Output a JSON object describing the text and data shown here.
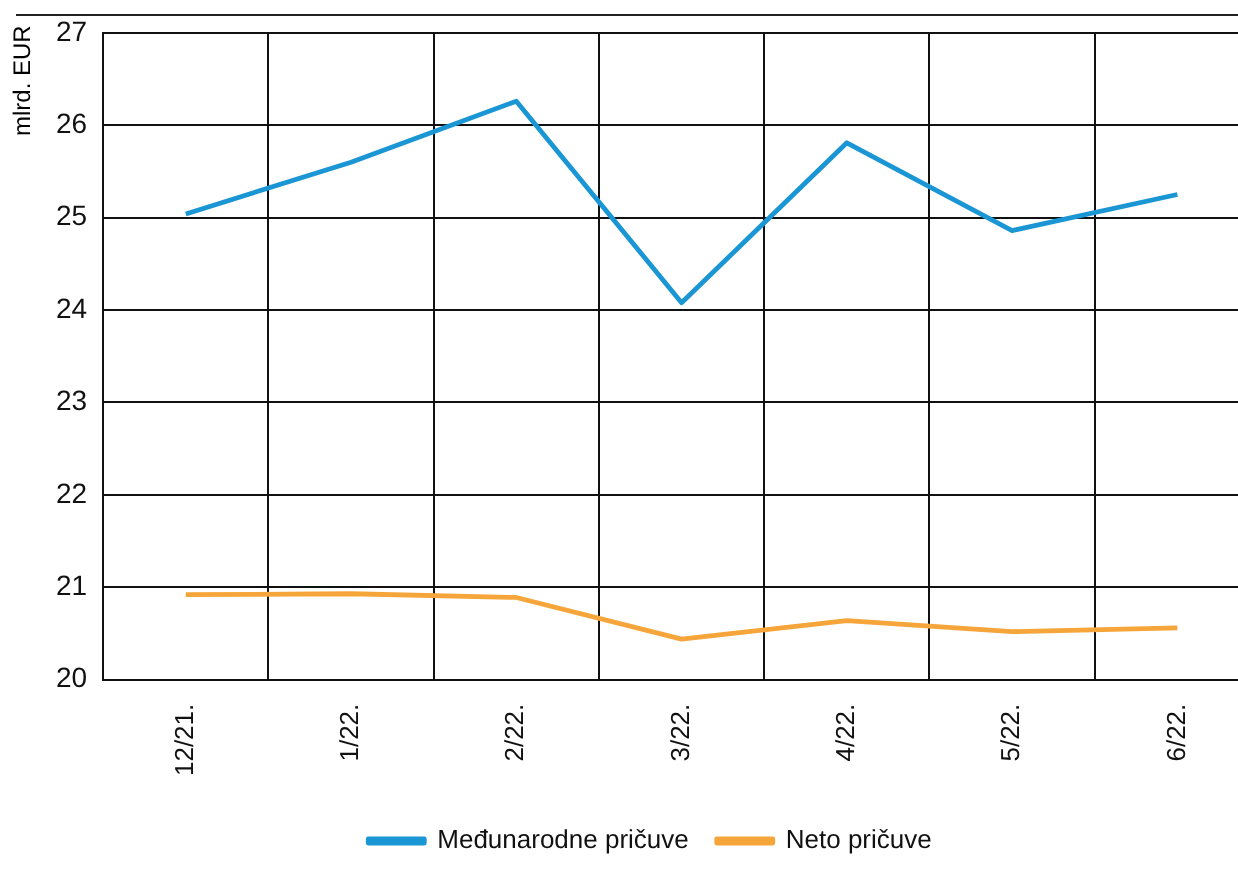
{
  "chart_data": {
    "type": "line",
    "ylabel": "mlrd. EUR",
    "categories": [
      "12/21.",
      "1/22.",
      "2/22.",
      "3/22.",
      "4/22.",
      "5/22.",
      "6/22."
    ],
    "series": [
      {
        "name": "Međunarodne pričuve",
        "color": "#1a96d4",
        "values": [
          25.04,
          25.6,
          26.26,
          24.08,
          25.81,
          24.86,
          25.25
        ]
      },
      {
        "name": "Neto pričuve",
        "color": "#f5a53a",
        "values": [
          20.92,
          20.93,
          20.89,
          20.44,
          20.64,
          20.52,
          20.56
        ]
      }
    ],
    "ylim": [
      20,
      27
    ],
    "yticks": [
      20,
      21,
      22,
      23,
      24,
      25,
      26,
      27
    ],
    "grid": true,
    "legend": "bottom",
    "marker": "none",
    "line_style": "solid"
  }
}
